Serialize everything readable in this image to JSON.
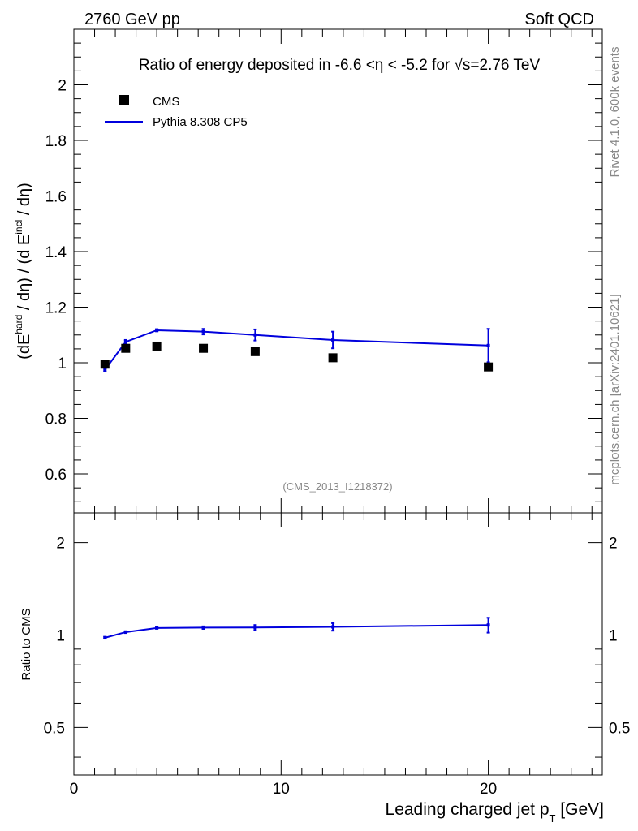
{
  "header": {
    "left": "2760 GeV pp",
    "right": "Soft QCD"
  },
  "side_labels": {
    "rivet": "Rivet 4.1.0,  600k events",
    "source": "mcplots.cern.ch [arXiv:2401.10621]"
  },
  "watermark": "(CMS_2013_I1218372)",
  "colors": {
    "mc": "#0000dd",
    "data": "#000000",
    "watermark": "#888888"
  },
  "chart_data": [
    {
      "type": "scatter",
      "panel": "main",
      "title": "Ratio of energy deposited in -6.6 <η < -5.2 for √s=2.76 TeV",
      "ylabel": "(dE^hard / dη) / (d E^incl / dη)",
      "ylabel_parts": {
        "a": "(dE",
        "b": "hard",
        "c": " / dη) / (d E",
        "d": "incl",
        "e": " / dη)"
      },
      "xlim": [
        0,
        25.5
      ],
      "ylim": [
        0.46,
        2.2
      ],
      "y_ticks": [
        0.6,
        0.8,
        1,
        1.2,
        1.4,
        1.6,
        1.8,
        2
      ],
      "y_tick_labels": [
        "0.6",
        "0.8",
        "1",
        "1.2",
        "1.4",
        "1.6",
        "1.8",
        "2"
      ],
      "legend": {
        "position": "top-left",
        "entries": [
          "CMS",
          "Pythia 8.308 CP5"
        ]
      },
      "series": [
        {
          "name": "CMS",
          "style": "markers",
          "x": [
            1.5,
            2.5,
            4.0,
            6.25,
            8.75,
            12.5,
            20.0
          ],
          "y": [
            0.995,
            1.052,
            1.06,
            1.052,
            1.04,
            1.018,
            0.985
          ]
        },
        {
          "name": "Pythia 8.308 CP5",
          "style": "line",
          "x": [
            1.5,
            2.5,
            4.0,
            6.25,
            8.75,
            12.5,
            20.0
          ],
          "y": [
            0.975,
            1.075,
            1.117,
            1.112,
            1.1,
            1.082,
            1.062
          ],
          "err": [
            0.007,
            0.007,
            0.004,
            0.01,
            0.02,
            0.03,
            0.06
          ]
        }
      ]
    },
    {
      "type": "line",
      "panel": "ratio",
      "ylabel": "Ratio to CMS",
      "xlabel": "Leading charged jet p_T [GeV]",
      "xlabel_parts": {
        "a": "Leading charged jet p",
        "b": "T",
        "c": " [GeV]"
      },
      "xlim": [
        0,
        25.5
      ],
      "ylim": [
        0.35,
        2.5
      ],
      "y_scale": "log",
      "y_ticks": [
        0.5,
        1,
        2
      ],
      "y_tick_labels": [
        "0.5",
        "1",
        "2"
      ],
      "x_ticks": [
        0,
        10,
        20
      ],
      "x_tick_labels": [
        "0",
        "10",
        "20"
      ],
      "reference_line": 1,
      "series": [
        {
          "name": "Pythia 8.308 CP5 / CMS",
          "x": [
            1.5,
            2.5,
            4.0,
            6.25,
            8.75,
            12.5,
            20.0
          ],
          "y": [
            0.98,
            1.022,
            1.054,
            1.057,
            1.058,
            1.063,
            1.078
          ],
          "err": [
            0.007,
            0.007,
            0.004,
            0.01,
            0.02,
            0.03,
            0.06
          ]
        }
      ]
    }
  ]
}
